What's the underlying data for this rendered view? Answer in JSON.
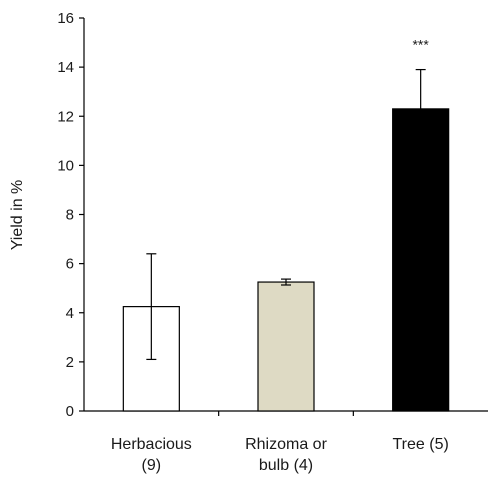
{
  "chart_data": {
    "type": "bar",
    "categories": [
      [
        "Herbacious",
        "(9)"
      ],
      [
        "Rhizoma or",
        "bulb (4)"
      ],
      [
        "Tree (5)"
      ]
    ],
    "values": [
      4.25,
      5.25,
      12.3
    ],
    "errors": [
      2.15,
      0.12,
      1.6
    ],
    "bar_colors": [
      "#ffffff",
      "#dedac4",
      "#000000"
    ],
    "significance": [
      "",
      "",
      "***"
    ],
    "title": "",
    "xlabel": "",
    "ylabel": "Yield in %",
    "ylim": [
      0,
      16
    ],
    "yticks": [
      0,
      2,
      4,
      6,
      8,
      10,
      12,
      14,
      16
    ],
    "grid": false
  }
}
